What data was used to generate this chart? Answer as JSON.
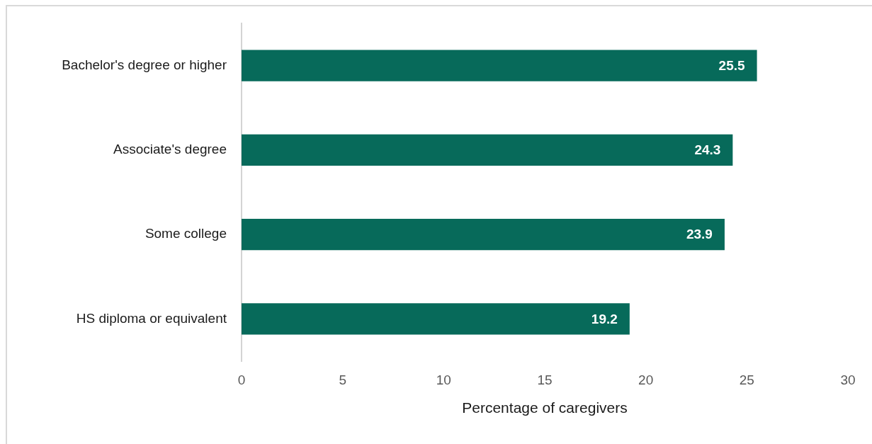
{
  "chart_data": {
    "type": "bar",
    "orientation": "horizontal",
    "categories": [
      "Bachelor's degree or higher",
      "Associate's degree",
      "Some college",
      "HS diploma or equivalent"
    ],
    "values": [
      25.5,
      24.3,
      23.9,
      19.2
    ],
    "color": "#076a5a",
    "xlim": [
      0,
      30
    ],
    "xticks": [
      0,
      5,
      10,
      15,
      20,
      25,
      30
    ],
    "xlabel": "Percentage of caregivers",
    "data_labels": true
  }
}
